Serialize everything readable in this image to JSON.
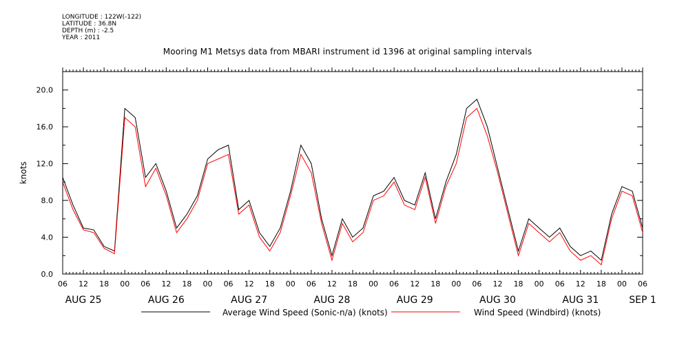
{
  "header": {
    "longitude": "LONGITUDE : 122W(-122)",
    "latitude": "LATITUDE : 36.8N",
    "depth": "DEPTH (m) : -2.5",
    "year": "YEAR : 2011"
  },
  "chart_data": {
    "type": "line",
    "title": "Mooring M1 Metsys data from MBARI instrument id 1396 at original sampling intervals",
    "ylabel": "knots",
    "xlabel": "",
    "ylim": [
      0,
      22
    ],
    "ytick_labels": [
      "0.0",
      "4.0",
      "8.0",
      "12.0",
      "16.0",
      "20.0"
    ],
    "yticks": [
      0,
      4,
      8,
      12,
      16,
      20
    ],
    "xlim": [
      "2011-08-25T06:00",
      "2011-09-01T06:00"
    ],
    "hour_tick_labels": [
      "06",
      "12",
      "18",
      "00",
      "06",
      "12",
      "18",
      "00",
      "06",
      "12",
      "18",
      "00",
      "06",
      "12",
      "18",
      "00",
      "06",
      "12",
      "18",
      "00",
      "06",
      "12",
      "18",
      "00",
      "06",
      "12",
      "18",
      "00",
      "06"
    ],
    "day_labels": [
      {
        "label": "AUG 25",
        "at": "2011-08-25T12:00"
      },
      {
        "label": "AUG 26",
        "at": "2011-08-26T12:00"
      },
      {
        "label": "AUG 27",
        "at": "2011-08-27T12:00"
      },
      {
        "label": "AUG 28",
        "at": "2011-08-28T12:00"
      },
      {
        "label": "AUG 29",
        "at": "2011-08-29T12:00"
      },
      {
        "label": "AUG 30",
        "at": "2011-08-30T12:00"
      },
      {
        "label": "AUG 31",
        "at": "2011-08-31T12:00"
      },
      {
        "label": "SEP 1",
        "at": "2011-09-01T06:00"
      }
    ],
    "grid": false,
    "legend_position": "bottom",
    "x": [
      "2011-08-25T06:00",
      "2011-08-25T09:00",
      "2011-08-25T12:00",
      "2011-08-25T15:00",
      "2011-08-25T18:00",
      "2011-08-25T21:00",
      "2011-08-26T00:00",
      "2011-08-26T03:00",
      "2011-08-26T06:00",
      "2011-08-26T09:00",
      "2011-08-26T12:00",
      "2011-08-26T15:00",
      "2011-08-26T18:00",
      "2011-08-26T21:00",
      "2011-08-27T00:00",
      "2011-08-27T03:00",
      "2011-08-27T06:00",
      "2011-08-27T09:00",
      "2011-08-27T12:00",
      "2011-08-27T15:00",
      "2011-08-27T18:00",
      "2011-08-27T21:00",
      "2011-08-28T00:00",
      "2011-08-28T03:00",
      "2011-08-28T06:00",
      "2011-08-28T09:00",
      "2011-08-28T12:00",
      "2011-08-28T15:00",
      "2011-08-28T18:00",
      "2011-08-28T21:00",
      "2011-08-29T00:00",
      "2011-08-29T03:00",
      "2011-08-29T06:00",
      "2011-08-29T09:00",
      "2011-08-29T12:00",
      "2011-08-29T15:00",
      "2011-08-29T18:00",
      "2011-08-29T21:00",
      "2011-08-30T00:00",
      "2011-08-30T03:00",
      "2011-08-30T06:00",
      "2011-08-30T09:00",
      "2011-08-30T12:00",
      "2011-08-30T15:00",
      "2011-08-30T18:00",
      "2011-08-30T21:00",
      "2011-08-31T00:00",
      "2011-08-31T03:00",
      "2011-08-31T06:00",
      "2011-08-31T09:00",
      "2011-08-31T12:00",
      "2011-08-31T15:00",
      "2011-08-31T18:00",
      "2011-08-31T21:00",
      "2011-09-01T00:00",
      "2011-09-01T03:00",
      "2011-09-01T06:00"
    ],
    "series": [
      {
        "name": "Average Wind Speed (Sonic-n/a) (knots)",
        "color": "#000000",
        "values": [
          10.5,
          7.5,
          5.0,
          4.8,
          3.0,
          2.5,
          18.0,
          17.0,
          10.5,
          12.0,
          9.0,
          5.0,
          6.5,
          8.5,
          12.5,
          13.5,
          14.0,
          7.0,
          8.0,
          4.5,
          3.0,
          5.0,
          9.0,
          14.0,
          12.0,
          6.0,
          2.0,
          6.0,
          4.0,
          5.0,
          8.5,
          9.0,
          10.5,
          8.0,
          7.5,
          11.0,
          6.0,
          10.0,
          13.0,
          18.0,
          19.0,
          16.0,
          11.5,
          7.0,
          2.5,
          6.0,
          5.0,
          4.0,
          5.0,
          3.0,
          2.0,
          2.5,
          1.5,
          6.5,
          9.5,
          9.0,
          5.0
        ]
      },
      {
        "name": "Wind Speed (Windbird) (knots)",
        "color": "#ff0000",
        "values": [
          10.0,
          7.0,
          4.8,
          4.5,
          2.8,
          2.2,
          17.0,
          16.0,
          9.5,
          11.5,
          8.5,
          4.5,
          6.0,
          8.0,
          12.0,
          12.5,
          13.0,
          6.5,
          7.5,
          4.0,
          2.5,
          4.5,
          8.5,
          13.0,
          11.0,
          5.5,
          1.5,
          5.5,
          3.5,
          4.5,
          8.0,
          8.5,
          10.0,
          7.5,
          7.0,
          10.5,
          5.5,
          9.5,
          12.0,
          17.0,
          18.0,
          15.0,
          11.0,
          6.5,
          2.0,
          5.5,
          4.5,
          3.5,
          4.5,
          2.5,
          1.5,
          2.0,
          1.0,
          6.0,
          9.0,
          8.5,
          4.5
        ]
      }
    ]
  }
}
